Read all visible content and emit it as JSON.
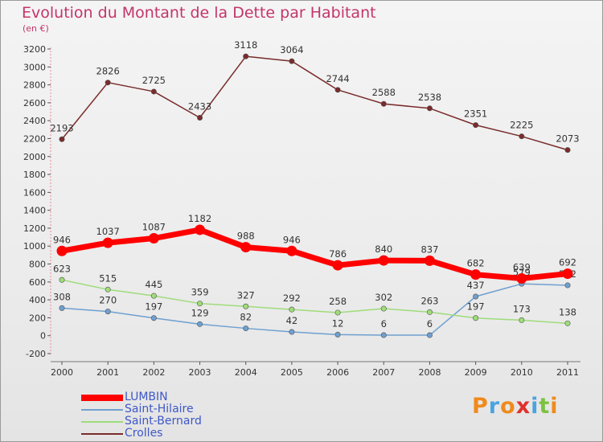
{
  "title": "Evolution du Montant de la Dette par Habitant",
  "subtitle": "(en €)",
  "brand": {
    "letters": [
      "P",
      "r",
      "o",
      "x",
      "i",
      "t",
      "i"
    ],
    "colors": [
      "#f08a1d",
      "#4aa3df",
      "#f08a1d",
      "#e0312c",
      "#4aa3df",
      "#7cc242",
      "#f08a1d"
    ]
  },
  "chart_data": {
    "type": "line",
    "title": "Evolution du Montant de la Dette par Habitant",
    "ylabel": "(en €)",
    "xlabel": "",
    "x": [
      "2000",
      "2001",
      "2002",
      "2003",
      "2004",
      "2005",
      "2006",
      "2007",
      "2008",
      "2009",
      "2010",
      "2011"
    ],
    "ylim": [
      -200,
      3200
    ],
    "yticks": [
      -200,
      0,
      200,
      400,
      600,
      800,
      1000,
      1200,
      1400,
      1600,
      1800,
      2000,
      2200,
      2400,
      2600,
      2800,
      3000,
      3200
    ],
    "grid": false,
    "legend_position": "bottom-left",
    "series": [
      {
        "name": "LUMBIN",
        "color": "#ff0000",
        "thick": true,
        "values": [
          946,
          1037,
          1087,
          1182,
          988,
          946,
          786,
          840,
          837,
          682,
          639,
          692
        ]
      },
      {
        "name": "Saint-Hilaire",
        "color": "#6fa0d0",
        "thick": false,
        "values": [
          308,
          270,
          197,
          129,
          82,
          42,
          12,
          6,
          6,
          437,
          579,
          562
        ]
      },
      {
        "name": "Saint-Bernard",
        "color": "#9fdc7a",
        "thick": false,
        "values": [
          623,
          515,
          445,
          359,
          327,
          292,
          258,
          302,
          263,
          197,
          173,
          138
        ]
      },
      {
        "name": "Crolles",
        "color": "#7a2b2b",
        "thick": false,
        "values": [
          2193,
          2826,
          2725,
          2433,
          3118,
          3064,
          2744,
          2588,
          2538,
          2351,
          2225,
          2073
        ]
      }
    ]
  }
}
